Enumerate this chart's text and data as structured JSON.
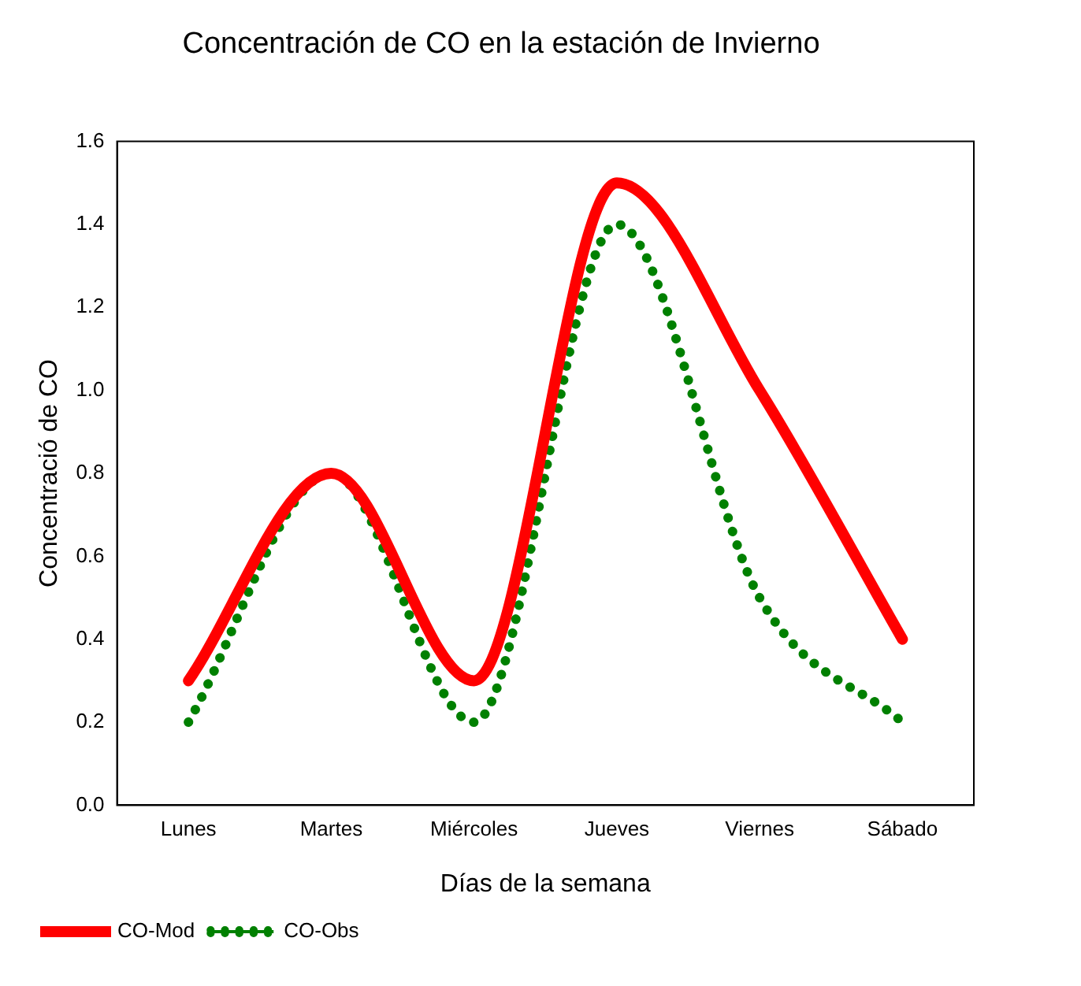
{
  "chart_data": {
    "type": "line",
    "title": "Concentración de CO en la estación de Invierno",
    "xlabel": "Días de la semana",
    "ylabel": "Concentració de CO",
    "categories": [
      "Lunes",
      "Martes",
      "Miércoles",
      "Jueves",
      "Viernes",
      "Sábado"
    ],
    "series": [
      {
        "name": "CO-Mod",
        "color": "#ff0000",
        "line_style": "solid",
        "values": [
          0.3,
          0.8,
          0.3,
          1.5,
          1.0,
          0.4
        ]
      },
      {
        "name": "CO-Obs",
        "color": "#008000",
        "line_style": "dotted",
        "values": [
          0.2,
          0.8,
          0.2,
          1.4,
          0.5,
          0.2
        ]
      }
    ],
    "ylim": [
      0,
      1.6
    ],
    "yticks": [
      {
        "value": 0,
        "label": "0.0"
      },
      {
        "value": 0.2,
        "label": "0.2"
      },
      {
        "value": 0.4,
        "label": "0.4"
      },
      {
        "value": 0.6,
        "label": "0.6"
      },
      {
        "value": 0.8,
        "label": "0.8"
      },
      {
        "value": 1,
        "label": "1.0"
      },
      {
        "value": 1.2,
        "label": "1.2"
      },
      {
        "value": 1.4,
        "label": "1.4"
      },
      {
        "value": 1.6,
        "label": "1.6"
      }
    ],
    "grid": false,
    "legend": "bottom left",
    "marker": "none"
  }
}
